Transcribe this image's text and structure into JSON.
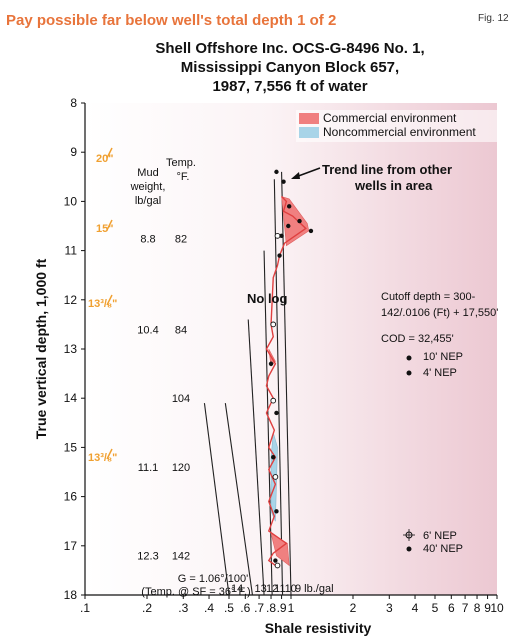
{
  "header": "Pay possible far below well's total depth 1 of 2",
  "fig_label": "Fig. 12",
  "chart_data": {
    "type": "line",
    "title_lines": [
      "Shell Offshore Inc. OCS-G-8496 No. 1,",
      "Mississippi Canyon Block 657,",
      "1987, 7,556 ft of water"
    ],
    "xlabel": "Shale resistivity",
    "ylabel": "True vertical depth, 1,000 ft",
    "x_scale": "log",
    "xlim": [
      0.1,
      10
    ],
    "ylim": [
      8,
      18
    ],
    "y_inverted": true,
    "x_ticks": [
      {
        "v": 0.1,
        "label": ".1"
      },
      {
        "v": 0.2,
        "label": ".2"
      },
      {
        "v": 0.3,
        "label": ".3"
      },
      {
        "v": 0.4,
        "label": ".4"
      },
      {
        "v": 0.5,
        "label": ".5"
      },
      {
        "v": 0.6,
        "label": ".6"
      },
      {
        "v": 0.7,
        "label": ".7"
      },
      {
        "v": 0.8,
        "label": ".8"
      },
      {
        "v": 0.9,
        "label": ".9"
      },
      {
        "v": 1,
        "label": "1"
      },
      {
        "v": 2,
        "label": "2"
      },
      {
        "v": 3,
        "label": "3"
      },
      {
        "v": 4,
        "label": "4"
      },
      {
        "v": 5,
        "label": "5"
      },
      {
        "v": 6,
        "label": "6"
      },
      {
        "v": 7,
        "label": "7"
      },
      {
        "v": 8,
        "label": "8"
      },
      {
        "v": 9,
        "label": "9"
      },
      {
        "v": 10,
        "label": "10"
      }
    ],
    "y_ticks": [
      8,
      9,
      10,
      11,
      12,
      13,
      14,
      15,
      16,
      17,
      18
    ],
    "legend": [
      {
        "label": "Commercial environment",
        "color": "#f08080"
      },
      {
        "label": "Noncommercial environment",
        "color": "#a8d4e8"
      }
    ],
    "casing": [
      "20\"",
      "15\"",
      "13³/₈\"",
      "13³/₈\""
    ],
    "table": {
      "mud_header": [
        "Mud",
        "weight,",
        "lb/gal"
      ],
      "temp_header": [
        "Temp.",
        "°F."
      ],
      "rows": [
        {
          "depth": 10.75,
          "mud": "8.8",
          "temp": "82"
        },
        {
          "depth": 12.6,
          "mud": "10.4",
          "temp": "84"
        },
        {
          "depth": 14.0,
          "mud": "",
          "temp": "104"
        },
        {
          "depth": 15.4,
          "mud": "11.1",
          "temp": "120"
        },
        {
          "depth": 17.2,
          "mud": "12.3",
          "temp": "142"
        }
      ],
      "gradient_note": "G = 1.06°/100'",
      "temp_note": "(Temp. @ SF = 36° F.)"
    },
    "mud_lines": [
      {
        "label": "14",
        "x_top": 0.38,
        "y_top": 14.1,
        "x_bottom": 0.5,
        "y_bottom": 18.0
      },
      {
        "label": "13",
        "x_top": 0.48,
        "y_top": 14.1,
        "x_bottom": 0.65,
        "y_bottom": 18.0
      },
      {
        "label": "12",
        "x_top": 0.62,
        "y_top": 12.4,
        "x_bottom": 0.74,
        "y_bottom": 18.0
      },
      {
        "label": "11",
        "x_top": 0.74,
        "y_top": 11.0,
        "x_bottom": 0.81,
        "y_bottom": 18.0
      },
      {
        "label": "10",
        "x_top": 0.83,
        "y_top": 9.55,
        "x_bottom": 0.91,
        "y_bottom": 18.0
      },
      {
        "label": "9 lb./gal",
        "x_top": 0.9,
        "y_top": 9.4,
        "x_bottom": 1.0,
        "y_bottom": 18.0
      }
    ],
    "log": [
      {
        "x": 0.9,
        "y": 9.9
      },
      {
        "x": 0.95,
        "y": 10.0
      },
      {
        "x": 0.92,
        "y": 10.2
      },
      {
        "x": 1.02,
        "y": 10.3
      },
      {
        "x": 1.18,
        "y": 10.55
      },
      {
        "x": 0.93,
        "y": 10.85
      },
      {
        "x": 0.88,
        "y": 11.1
      },
      {
        "x": 0.86,
        "y": 11.3
      },
      {
        "x": 0.82,
        "y": 11.55
      },
      {
        "x": 0.8,
        "y": 12.5
      },
      {
        "x": 0.82,
        "y": 12.75
      },
      {
        "x": 0.76,
        "y": 13.0
      },
      {
        "x": 0.84,
        "y": 13.3
      },
      {
        "x": 0.78,
        "y": 13.55
      },
      {
        "x": 0.76,
        "y": 13.75
      },
      {
        "x": 0.82,
        "y": 14.0
      },
      {
        "x": 0.76,
        "y": 14.3
      },
      {
        "x": 0.83,
        "y": 14.65
      },
      {
        "x": 0.78,
        "y": 15.0
      },
      {
        "x": 0.84,
        "y": 15.2
      },
      {
        "x": 0.78,
        "y": 15.45
      },
      {
        "x": 0.84,
        "y": 15.75
      },
      {
        "x": 0.78,
        "y": 16.1
      },
      {
        "x": 0.83,
        "y": 16.4
      },
      {
        "x": 0.78,
        "y": 16.7
      },
      {
        "x": 0.95,
        "y": 16.95
      },
      {
        "x": 0.82,
        "y": 17.15
      },
      {
        "x": 0.78,
        "y": 17.3
      },
      {
        "x": 0.84,
        "y": 17.4
      }
    ],
    "commercial_areas": [
      [
        [
          0.9,
          9.9
        ],
        [
          0.98,
          9.95
        ],
        [
          1.2,
          10.45
        ],
        [
          1.22,
          10.6
        ],
        [
          0.95,
          10.9
        ],
        [
          0.92,
          10.3
        ]
      ],
      [
        [
          0.78,
          13.0
        ],
        [
          0.84,
          13.25
        ],
        [
          0.8,
          13.35
        ]
      ],
      [
        [
          0.8,
          16.75
        ],
        [
          0.96,
          16.95
        ],
        [
          0.98,
          17.4
        ],
        [
          0.85,
          17.2
        ]
      ]
    ],
    "noncommercial_areas": [
      [
        [
          0.82,
          14.7
        ],
        [
          0.86,
          15.0
        ],
        [
          0.84,
          16.5
        ],
        [
          0.8,
          16.3
        ],
        [
          0.8,
          15.2
        ]
      ]
    ],
    "points": [
      {
        "x": 0.85,
        "y": 9.4
      },
      {
        "x": 0.92,
        "y": 9.6
      },
      {
        "x": 0.98,
        "y": 10.1
      },
      {
        "x": 1.1,
        "y": 10.4
      },
      {
        "x": 1.25,
        "y": 10.6
      },
      {
        "x": 0.97,
        "y": 10.5
      },
      {
        "x": 0.9,
        "y": 10.7
      },
      {
        "x": 0.88,
        "y": 11.1
      },
      {
        "x": 0.8,
        "y": 13.3
      },
      {
        "x": 0.85,
        "y": 14.3
      },
      {
        "x": 0.82,
        "y": 15.2
      },
      {
        "x": 0.85,
        "y": 16.3
      },
      {
        "x": 0.84,
        "y": 17.3
      }
    ],
    "open_points": [
      {
        "x": 0.86,
        "y": 10.7
      },
      {
        "x": 0.82,
        "y": 12.5
      },
      {
        "x": 0.82,
        "y": 14.05
      },
      {
        "x": 0.84,
        "y": 15.6
      },
      {
        "x": 0.86,
        "y": 17.4
      }
    ],
    "annotations": {
      "trend": [
        "Trend line from other",
        "wells in area"
      ],
      "no_log": "No log",
      "cutoff": [
        "Cutoff depth = 300-",
        "142/.0106 (Ft) + 17,550'"
      ],
      "cod": "COD = 32,455'",
      "nep": [
        "10' NEP",
        "4' NEP",
        "6' NEP",
        "40' NEP"
      ]
    },
    "grid": false
  }
}
